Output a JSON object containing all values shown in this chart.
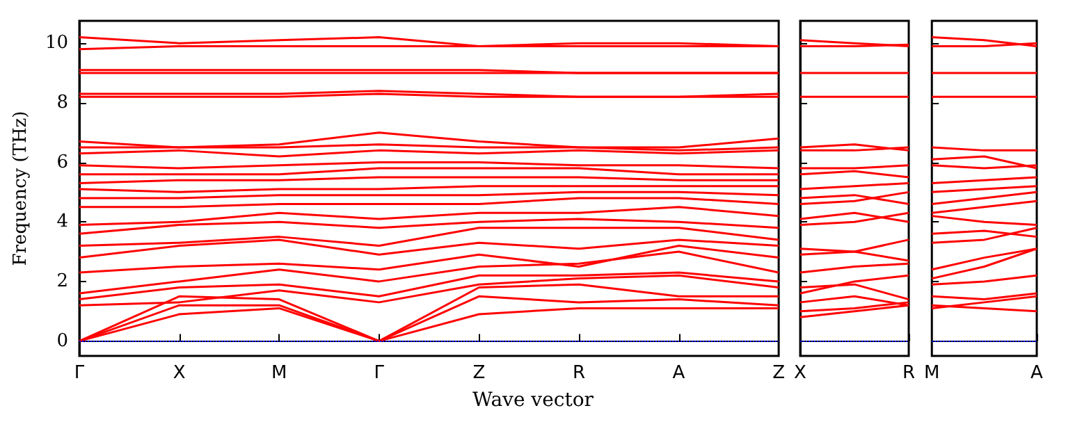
{
  "chart_data": [
    {
      "type": "line",
      "xlabel": "Wave vector",
      "ylabel": "Frequency (THz)",
      "color": "#ff0000",
      "grid": false,
      "marker": "none",
      "line_style": "solid",
      "categories": [
        "Γ",
        "X",
        "M",
        "Γ",
        "Z",
        "R",
        "A",
        "Z"
      ],
      "ylim": [
        -0.5,
        10.75
      ],
      "yticks": [
        0,
        2,
        4,
        6,
        8,
        10
      ],
      "ref_lines": [
        {
          "axis": "y",
          "value": 0,
          "color": "#0000ff",
          "line_style": "dotted"
        }
      ],
      "series": [
        {
          "values": [
            0,
            0.9,
            1.1,
            0,
            0.9,
            1.1,
            1.1,
            1.1
          ]
        },
        {
          "values": [
            0,
            1.2,
            1.2,
            0,
            1.5,
            1.3,
            1.4,
            1.2
          ]
        },
        {
          "values": [
            0,
            1.5,
            1.4,
            0,
            1.8,
            1.9,
            1.5,
            1.5
          ]
        },
        {
          "values": [
            1.2,
            1.3,
            1.7,
            1.3,
            1.9,
            2.1,
            2.2,
            1.8
          ]
        },
        {
          "values": [
            1.4,
            1.8,
            1.9,
            1.5,
            2.2,
            2.2,
            2.3,
            2
          ]
        },
        {
          "values": [
            1.6,
            2,
            2.4,
            2,
            2.5,
            2.6,
            3,
            2.3
          ]
        },
        {
          "values": [
            2.3,
            2.5,
            2.6,
            2.4,
            2.9,
            2.5,
            3.2,
            2.8
          ]
        },
        {
          "values": [
            2.8,
            3.2,
            3.4,
            2.9,
            3.3,
            3.1,
            3.4,
            3.2
          ]
        },
        {
          "values": [
            3.2,
            3.3,
            3.5,
            3.2,
            3.8,
            3.8,
            3.8,
            3.4
          ]
        },
        {
          "values": [
            3.6,
            3.9,
            4,
            3.8,
            4,
            4.1,
            4,
            3.8
          ]
        },
        {
          "values": [
            3.9,
            4,
            4.3,
            4.1,
            4.3,
            4.3,
            4.5,
            4.2
          ]
        },
        {
          "values": [
            4.5,
            4.5,
            4.6,
            4.6,
            4.6,
            4.8,
            4.8,
            4.6
          ]
        },
        {
          "values": [
            4.8,
            4.8,
            4.9,
            4.9,
            4.9,
            5,
            5,
            4.9
          ]
        },
        {
          "values": [
            5.1,
            5,
            5.1,
            5.1,
            5.2,
            5.2,
            5.2,
            5.2
          ]
        },
        {
          "values": [
            5.3,
            5.4,
            5.4,
            5.5,
            5.5,
            5.5,
            5.4,
            5.4
          ]
        },
        {
          "values": [
            5.6,
            5.6,
            5.6,
            5.8,
            5.8,
            5.8,
            5.6,
            5.6
          ]
        },
        {
          "values": [
            5.9,
            5.8,
            5.9,
            6,
            6,
            5.9,
            5.9,
            5.8
          ]
        },
        {
          "values": [
            6.3,
            6.4,
            6.2,
            6.4,
            6.3,
            6.4,
            6.3,
            6.4
          ]
        },
        {
          "values": [
            6.5,
            6.5,
            6.5,
            6.6,
            6.5,
            6.5,
            6.4,
            6.5
          ]
        },
        {
          "values": [
            6.7,
            6.5,
            6.6,
            7,
            6.7,
            6.5,
            6.5,
            6.8
          ]
        },
        {
          "values": [
            8.2,
            8.2,
            8.2,
            8.3,
            8.2,
            8.2,
            8.2,
            8.2
          ]
        },
        {
          "values": [
            8.3,
            8.3,
            8.3,
            8.4,
            8.3,
            8.2,
            8.2,
            8.3
          ]
        },
        {
          "values": [
            9,
            9,
            9,
            9,
            9,
            9,
            9,
            9
          ]
        },
        {
          "values": [
            9.1,
            9.1,
            9.1,
            9.1,
            9.1,
            9,
            9,
            9
          ]
        },
        {
          "values": [
            9.8,
            9.9,
            9.9,
            9.9,
            9.9,
            9.9,
            9.9,
            9.9
          ]
        },
        {
          "values": [
            10.2,
            10,
            10.1,
            10.2,
            9.9,
            10,
            10,
            9.9
          ]
        }
      ]
    },
    {
      "type": "line",
      "color": "#ff0000",
      "grid": false,
      "marker": "none",
      "line_style": "solid",
      "tick_labels": "x",
      "categories": [
        "X",
        null,
        "R"
      ],
      "ylim": [
        -0.5,
        10.75
      ],
      "yticks": [
        {
          "value": 0,
          "label": null
        },
        {
          "value": 2,
          "label": null
        },
        {
          "value": 4,
          "label": null
        },
        {
          "value": 6,
          "label": null
        },
        {
          "value": 8,
          "label": null
        },
        {
          "value": 10,
          "label": null
        }
      ],
      "ref_lines": [
        {
          "axis": "y",
          "value": 0,
          "color": "#0000ff",
          "line_style": "dotted"
        }
      ],
      "series": [
        {
          "values": [
            0.8,
            1,
            1.2
          ]
        },
        {
          "values": [
            1,
            1.1,
            1.3
          ]
        },
        {
          "values": [
            1.3,
            1.5,
            1.2
          ]
        },
        {
          "values": [
            1.6,
            2,
            2.2
          ]
        },
        {
          "values": [
            1.8,
            1.9,
            1.4
          ]
        },
        {
          "values": [
            2.3,
            2.5,
            2.6
          ]
        },
        {
          "values": [
            2.9,
            3,
            3.4
          ]
        },
        {
          "values": [
            3.1,
            3,
            2.7
          ]
        },
        {
          "values": [
            3.9,
            4,
            4.3
          ]
        },
        {
          "values": [
            4.1,
            4.3,
            4
          ]
        },
        {
          "values": [
            4.6,
            4.7,
            5
          ]
        },
        {
          "values": [
            4.8,
            4.9,
            4.6
          ]
        },
        {
          "values": [
            5.1,
            5.2,
            5.3
          ]
        },
        {
          "values": [
            5.6,
            5.7,
            5.5
          ]
        },
        {
          "values": [
            5.8,
            5.8,
            5.9
          ]
        },
        {
          "values": [
            6.4,
            6.4,
            6.5
          ]
        },
        {
          "values": [
            6.5,
            6.6,
            6.4
          ]
        },
        {
          "values": [
            8.2,
            8.2,
            8.2
          ]
        },
        {
          "values": [
            9,
            9,
            9
          ]
        },
        {
          "values": [
            9.9,
            9.9,
            9.95
          ]
        },
        {
          "values": [
            10.1,
            10,
            9.9
          ]
        }
      ]
    },
    {
      "type": "line",
      "color": "#ff0000",
      "grid": false,
      "marker": "none",
      "line_style": "solid",
      "tick_labels": "x",
      "categories": [
        "M",
        null,
        "A"
      ],
      "ylim": [
        -0.5,
        10.75
      ],
      "yticks": [
        {
          "value": 0,
          "label": null
        },
        {
          "value": 2,
          "label": null
        },
        {
          "value": 4,
          "label": null
        },
        {
          "value": 6,
          "label": null
        },
        {
          "value": 8,
          "label": null
        },
        {
          "value": 10,
          "label": null
        }
      ],
      "ref_lines": [
        {
          "axis": "y",
          "value": 0,
          "color": "#0000ff",
          "line_style": "dotted"
        }
      ],
      "series": [
        {
          "values": [
            1.1,
            1.3,
            1.5
          ]
        },
        {
          "values": [
            1.2,
            1.1,
            1
          ]
        },
        {
          "values": [
            1.5,
            1.4,
            1.6
          ]
        },
        {
          "values": [
            1.9,
            2,
            2.2
          ]
        },
        {
          "values": [
            2.1,
            2.5,
            3.1
          ]
        },
        {
          "values": [
            2.4,
            2.8,
            3.1
          ]
        },
        {
          "values": [
            3.3,
            3.4,
            3.8
          ]
        },
        {
          "values": [
            3.6,
            3.7,
            3.5
          ]
        },
        {
          "values": [
            4.2,
            4,
            3.9
          ]
        },
        {
          "values": [
            4.3,
            4.5,
            4.7
          ]
        },
        {
          "values": [
            4.6,
            4.8,
            5
          ]
        },
        {
          "values": [
            5,
            5.1,
            5.2
          ]
        },
        {
          "values": [
            5.3,
            5.4,
            5.5
          ]
        },
        {
          "values": [
            5.9,
            5.8,
            5.9
          ]
        },
        {
          "values": [
            6.1,
            6.2,
            5.8
          ]
        },
        {
          "values": [
            6.5,
            6.4,
            6.4
          ]
        },
        {
          "values": [
            8.2,
            8.2,
            8.2
          ]
        },
        {
          "values": [
            9,
            9,
            9
          ]
        },
        {
          "values": [
            9.9,
            9.9,
            10
          ]
        },
        {
          "values": [
            10.2,
            10.1,
            9.9
          ]
        }
      ]
    }
  ]
}
